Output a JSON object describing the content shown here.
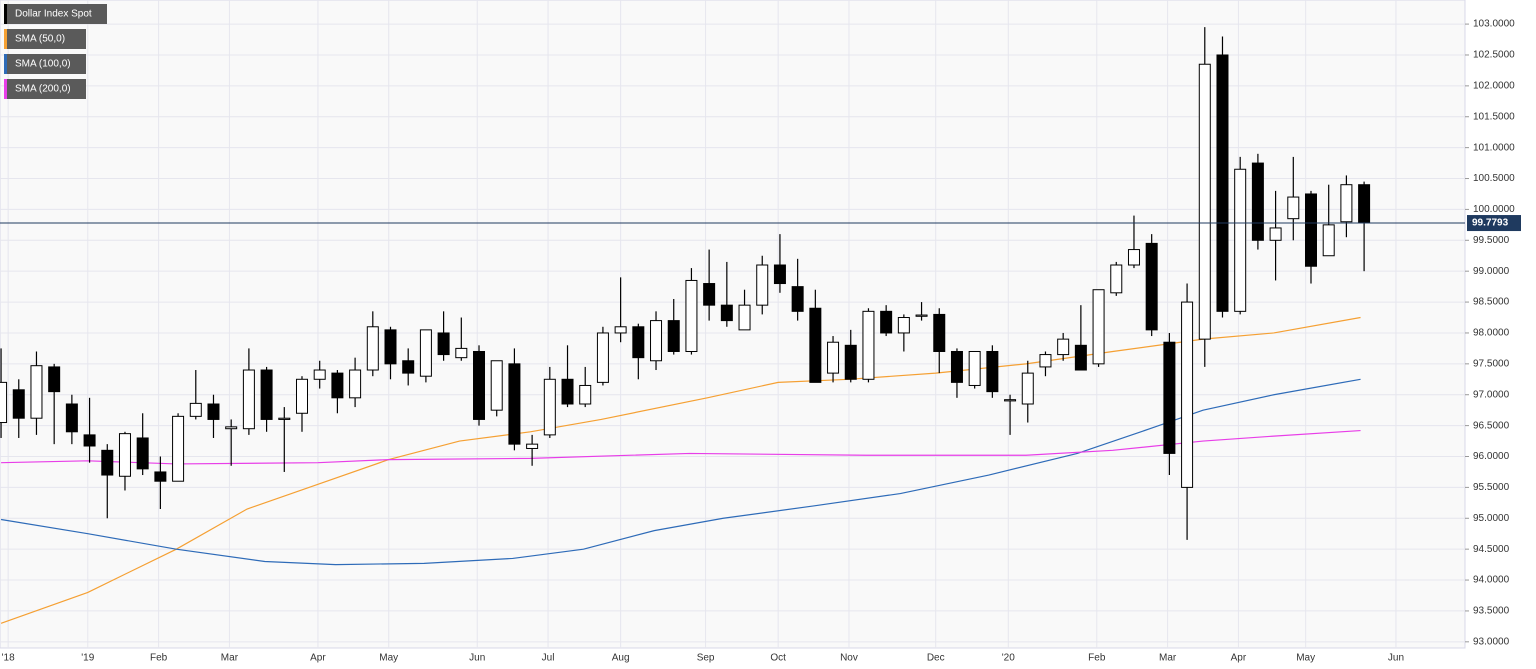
{
  "chart_data": {
    "type": "candlestick",
    "xlim": [
      -0.06,
      82.7
    ],
    "ylim": [
      92.9,
      103.39
    ],
    "xticks": [
      {
        "value": 0.4,
        "label": "'18"
      },
      {
        "value": 4.9,
        "label": "'19"
      },
      {
        "value": 8.9,
        "label": "Feb"
      },
      {
        "value": 12.9,
        "label": "Mar"
      },
      {
        "value": 17.9,
        "label": "Apr"
      },
      {
        "value": 21.9,
        "label": "May"
      },
      {
        "value": 26.9,
        "label": "Jun"
      },
      {
        "value": 30.9,
        "label": "Jul"
      },
      {
        "value": 35.0,
        "label": "Aug"
      },
      {
        "value": 39.8,
        "label": "Sep"
      },
      {
        "value": 43.9,
        "label": "Oct"
      },
      {
        "value": 47.9,
        "label": "Nov"
      },
      {
        "value": 52.8,
        "label": "Dec"
      },
      {
        "value": 56.9,
        "label": "'20"
      },
      {
        "value": 61.9,
        "label": "Feb"
      },
      {
        "value": 65.9,
        "label": "Mar"
      },
      {
        "value": 69.9,
        "label": "Apr"
      },
      {
        "value": 73.7,
        "label": "May"
      },
      {
        "value": 78.8,
        "label": "Jun"
      }
    ],
    "yticks": [
      {
        "value": 93,
        "label": "93.0000"
      },
      {
        "value": 93.5,
        "label": "93.5000"
      },
      {
        "value": 94,
        "label": "94.0000"
      },
      {
        "value": 94.5,
        "label": "94.5000"
      },
      {
        "value": 95,
        "label": "95.0000"
      },
      {
        "value": 95.5,
        "label": "95.5000"
      },
      {
        "value": 96,
        "label": "96.0000"
      },
      {
        "value": 96.5,
        "label": "96.5000"
      },
      {
        "value": 97,
        "label": "97.0000"
      },
      {
        "value": 97.5,
        "label": "97.5000"
      },
      {
        "value": 98,
        "label": "98.0000"
      },
      {
        "value": 98.5,
        "label": "98.5000"
      },
      {
        "value": 99,
        "label": "99.0000"
      },
      {
        "value": 99.5,
        "label": "99.5000"
      },
      {
        "value": 100,
        "label": "100.0000"
      },
      {
        "value": 100.5,
        "label": "100.5000"
      },
      {
        "value": 101,
        "label": "101.0000"
      },
      {
        "value": 101.5,
        "label": "101.5000"
      },
      {
        "value": 102,
        "label": "102.0000"
      },
      {
        "value": 102.5,
        "label": "102.5000"
      },
      {
        "value": 103,
        "label": "103.0000"
      }
    ],
    "grid": true,
    "last_price": {
      "value": 99.7793,
      "label": "99.7793",
      "color": "#1f3a5f"
    },
    "candles": {
      "name": "Dollar Index Spot",
      "color": "#000000",
      "up_color": "#ffffff",
      "down_color": "#000000",
      "x": [
        0,
        1,
        2,
        3,
        4,
        5,
        6,
        7,
        8,
        9,
        10,
        11,
        12,
        13,
        14,
        15,
        16,
        17,
        18,
        19,
        20,
        21,
        22,
        23,
        24,
        25,
        26,
        27,
        28,
        29,
        30,
        31,
        32,
        33,
        34,
        35,
        36,
        37,
        38,
        39,
        40,
        41,
        42,
        43,
        44,
        45,
        46,
        47,
        48,
        49,
        50,
        51,
        52,
        53,
        54,
        55,
        56,
        57,
        58,
        59,
        60,
        61,
        62,
        63,
        64,
        65,
        66,
        67,
        68,
        69,
        70,
        71,
        72,
        73,
        74,
        75,
        76,
        77
      ],
      "open": [
        96.55,
        97.08,
        96.62,
        97.45,
        96.85,
        96.35,
        96.1,
        95.68,
        96.3,
        95.75,
        95.6,
        96.65,
        96.85,
        96.45,
        96.45,
        97.4,
        96.6,
        96.7,
        97.25,
        97.35,
        96.95,
        97.4,
        98.05,
        97.55,
        97.3,
        98.0,
        97.6,
        97.7,
        96.75,
        97.5,
        96.13,
        96.35,
        97.25,
        96.85,
        97.2,
        98.0,
        98.1,
        97.55,
        98.2,
        97.7,
        98.8,
        98.45,
        98.05,
        98.45,
        99.1,
        98.75,
        98.4,
        97.35,
        97.8,
        97.25,
        98.35,
        98.0,
        98.27,
        98.3,
        97.7,
        97.15,
        97.7,
        96.9,
        96.85,
        97.45,
        97.65,
        97.8,
        97.5,
        98.65,
        99.1,
        99.45,
        97.85,
        95.5,
        97.9,
        102.5,
        98.35,
        100.75,
        99.5,
        99.85,
        100.25,
        99.25,
        99.8,
        100.4
      ],
      "high": [
        97.75,
        97.25,
        97.7,
        97.5,
        97.0,
        96.95,
        96.2,
        96.4,
        96.7,
        96.0,
        96.7,
        97.4,
        97.0,
        96.6,
        97.75,
        97.45,
        96.8,
        97.3,
        97.55,
        97.4,
        97.6,
        98.35,
        98.1,
        97.75,
        98.05,
        98.35,
        98.25,
        97.8,
        97.55,
        97.75,
        96.35,
        97.45,
        97.8,
        97.45,
        98.1,
        98.9,
        98.15,
        98.35,
        98.55,
        99.05,
        99.35,
        99.15,
        98.7,
        99.25,
        99.6,
        99.2,
        98.7,
        97.95,
        98.05,
        98.4,
        98.45,
        98.3,
        98.5,
        98.4,
        97.75,
        97.7,
        97.8,
        97.0,
        97.55,
        97.7,
        98.0,
        98.45,
        98.7,
        99.15,
        99.9,
        99.6,
        98.0,
        98.8,
        102.95,
        102.8,
        100.85,
        100.9,
        100.3,
        100.85,
        100.3,
        100.4,
        100.55,
        100.45
      ],
      "low": [
        96.3,
        96.3,
        96.35,
        96.2,
        96.2,
        95.9,
        95.0,
        95.45,
        95.7,
        95.15,
        95.6,
        96.6,
        96.3,
        95.85,
        96.35,
        96.4,
        95.75,
        96.4,
        97.1,
        96.7,
        96.8,
        97.3,
        97.25,
        97.15,
        97.2,
        97.55,
        97.55,
        96.5,
        96.65,
        96.1,
        95.85,
        96.3,
        96.8,
        96.8,
        97.15,
        97.85,
        97.25,
        97.4,
        97.65,
        97.65,
        98.2,
        98.1,
        98.05,
        98.3,
        98.65,
        98.2,
        97.2,
        97.2,
        97.2,
        97.2,
        97.95,
        97.7,
        98.2,
        97.35,
        96.95,
        97.1,
        96.95,
        96.35,
        96.55,
        97.3,
        97.55,
        97.4,
        97.45,
        98.6,
        99.05,
        97.95,
        95.7,
        94.65,
        97.45,
        98.25,
        98.3,
        99.35,
        98.85,
        99.5,
        98.8,
        99.25,
        99.55,
        99.0
      ],
      "close": [
        97.2,
        96.62,
        97.47,
        97.05,
        96.4,
        96.17,
        95.7,
        96.37,
        95.8,
        95.6,
        96.65,
        96.86,
        96.6,
        96.48,
        97.4,
        96.6,
        96.62,
        97.25,
        97.4,
        96.95,
        97.4,
        98.1,
        97.5,
        97.35,
        98.05,
        97.65,
        97.75,
        96.6,
        97.55,
        96.2,
        96.2,
        97.25,
        96.85,
        97.15,
        98.0,
        98.1,
        97.6,
        98.2,
        97.7,
        98.85,
        98.45,
        98.2,
        98.45,
        99.1,
        98.8,
        98.35,
        97.2,
        97.85,
        97.25,
        98.35,
        98.0,
        98.25,
        98.29,
        97.7,
        97.2,
        97.7,
        97.05,
        96.92,
        97.35,
        97.65,
        97.9,
        97.4,
        98.7,
        99.1,
        99.35,
        98.05,
        96.05,
        98.5,
        102.35,
        98.35,
        100.65,
        99.5,
        99.7,
        100.2,
        99.08,
        99.75,
        100.4,
        99.78
      ]
    },
    "series": [
      {
        "name": "SMA (50,0)",
        "color": "#f5a033",
        "x": [
          0,
          4.9,
          9.9,
          13.9,
          17.9,
          21.9,
          25.9,
          29.9,
          33.9,
          39.9,
          43.9,
          47.9,
          52.8,
          57.9,
          62.8,
          67.9,
          71.9,
          76.8
        ],
        "values": [
          93.3,
          93.8,
          94.5,
          95.15,
          95.55,
          95.95,
          96.25,
          96.4,
          96.6,
          96.95,
          97.2,
          97.25,
          97.35,
          97.5,
          97.7,
          97.9,
          98.0,
          98.25
        ]
      },
      {
        "name": "SMA (100,0)",
        "color": "#2e6bb8",
        "x": [
          0,
          4.9,
          9.9,
          14.9,
          18.9,
          23.9,
          28.9,
          32.9,
          36.9,
          40.8,
          45.9,
          50.8,
          55.8,
          60.8,
          64.9,
          67.9,
          71.9,
          76.8
        ],
        "values": [
          94.98,
          94.75,
          94.5,
          94.3,
          94.25,
          94.27,
          94.35,
          94.5,
          94.8,
          95.0,
          95.2,
          95.4,
          95.7,
          96.05,
          96.45,
          96.75,
          97.0,
          97.25
        ]
      },
      {
        "name": "SMA (200,0)",
        "color": "#e83ee8",
        "x": [
          0,
          4.9,
          9.9,
          17.9,
          21.9,
          29.9,
          38.9,
          48.9,
          57.9,
          62.8,
          67.9,
          71.9,
          76.8
        ],
        "values": [
          95.9,
          95.93,
          95.88,
          95.9,
          95.95,
          95.97,
          96.05,
          96.02,
          96.02,
          96.1,
          96.25,
          96.33,
          96.42
        ]
      }
    ]
  }
}
